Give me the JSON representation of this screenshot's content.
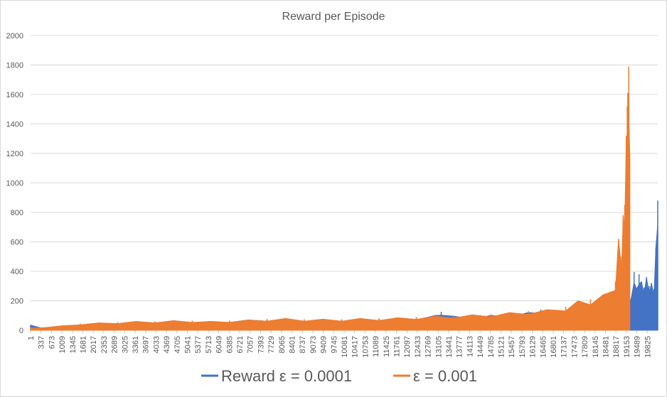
{
  "chart_data": {
    "type": "bar",
    "title": "Reward per Episode",
    "xlabel": "",
    "ylabel": "",
    "ylim": [
      0,
      2000
    ],
    "yticks": [
      0,
      200,
      400,
      600,
      800,
      1000,
      1200,
      1400,
      1600,
      1800,
      2000
    ],
    "xlim": [
      1,
      20161
    ],
    "xticks": [
      1,
      337,
      673,
      1009,
      1345,
      1681,
      2017,
      2353,
      2689,
      3025,
      3361,
      3697,
      4033,
      4369,
      4705,
      5041,
      5377,
      5713,
      6049,
      6385,
      6721,
      7057,
      7393,
      7729,
      8065,
      8401,
      8737,
      9073,
      9409,
      9745,
      10081,
      10417,
      10753,
      11089,
      11425,
      11761,
      12097,
      12433,
      12769,
      13105,
      13441,
      13777,
      14113,
      14449,
      14785,
      15121,
      15457,
      15793,
      16129,
      16465,
      16801,
      17137,
      17473,
      17809,
      18145,
      18481,
      18817,
      19153,
      19489,
      19825
    ],
    "grid": true,
    "legend_position": "bottom",
    "series": [
      {
        "name": "Reward ε = 0.0001",
        "color": "#4472c4",
        "x": [
          1,
          400,
          1000,
          1600,
          2200,
          2800,
          3400,
          4000,
          4600,
          5200,
          5800,
          6400,
          7000,
          7600,
          8200,
          8800,
          9400,
          10000,
          10600,
          11200,
          11800,
          12400,
          13000,
          13200,
          13600,
          14200,
          14800,
          15400,
          16000,
          16400,
          16600,
          17000,
          17600,
          18200,
          18800,
          19100,
          19300,
          19400,
          19480,
          19560,
          19640,
          19720,
          19800,
          19880,
          19960,
          20040,
          20100,
          20161
        ],
        "y": [
          35,
          15,
          25,
          35,
          40,
          50,
          55,
          60,
          65,
          60,
          55,
          65,
          70,
          75,
          70,
          65,
          70,
          70,
          75,
          80,
          80,
          85,
          100,
          125,
          95,
          95,
          100,
          110,
          120,
          140,
          115,
          130,
          160,
          180,
          210,
          200,
          210,
          395,
          280,
          380,
          330,
          290,
          360,
          300,
          320,
          280,
          560,
          880
        ]
      },
      {
        "name": "ε = 0.001",
        "color": "#ed7d31",
        "x": [
          1,
          400,
          1000,
          1600,
          2200,
          2800,
          3400,
          4000,
          4600,
          5200,
          5800,
          6400,
          7000,
          7600,
          8200,
          8800,
          9400,
          10000,
          10600,
          11200,
          11800,
          12400,
          13000,
          13600,
          14200,
          14800,
          15400,
          16000,
          16600,
          17200,
          17600,
          18000,
          18400,
          18800,
          18900,
          19000,
          19050,
          19100,
          19150,
          19180,
          19200,
          19230,
          19260
        ],
        "y": [
          15,
          20,
          30,
          45,
          50,
          55,
          60,
          60,
          65,
          65,
          60,
          65,
          70,
          75,
          80,
          75,
          75,
          75,
          80,
          80,
          85,
          90,
          95,
          100,
          105,
          110,
          120,
          130,
          140,
          160,
          200,
          210,
          240,
          330,
          620,
          500,
          780,
          850,
          1320,
          1520,
          1610,
          1790,
          1200
        ]
      }
    ]
  }
}
